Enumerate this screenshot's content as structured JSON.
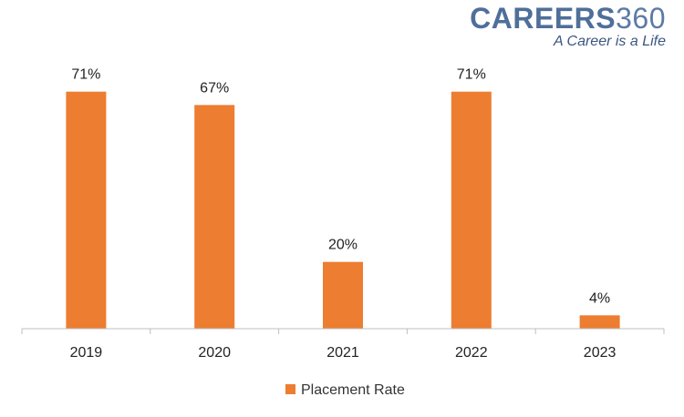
{
  "logo": {
    "brand": "CAREERS",
    "number": "360",
    "tagline": "A Career is a Life"
  },
  "chart_data": {
    "type": "bar",
    "categories": [
      "2019",
      "2020",
      "2021",
      "2022",
      "2023"
    ],
    "series": [
      {
        "name": "Placement Rate",
        "values": [
          71,
          67,
          20,
          71,
          4
        ],
        "labels": [
          "71%",
          "67%",
          "20%",
          "71%",
          "4%"
        ],
        "color": "#ed7d31"
      }
    ],
    "title": "",
    "xlabel": "",
    "ylabel": "",
    "ylim": [
      0,
      75
    ],
    "grid": false,
    "legend": "bottom"
  }
}
